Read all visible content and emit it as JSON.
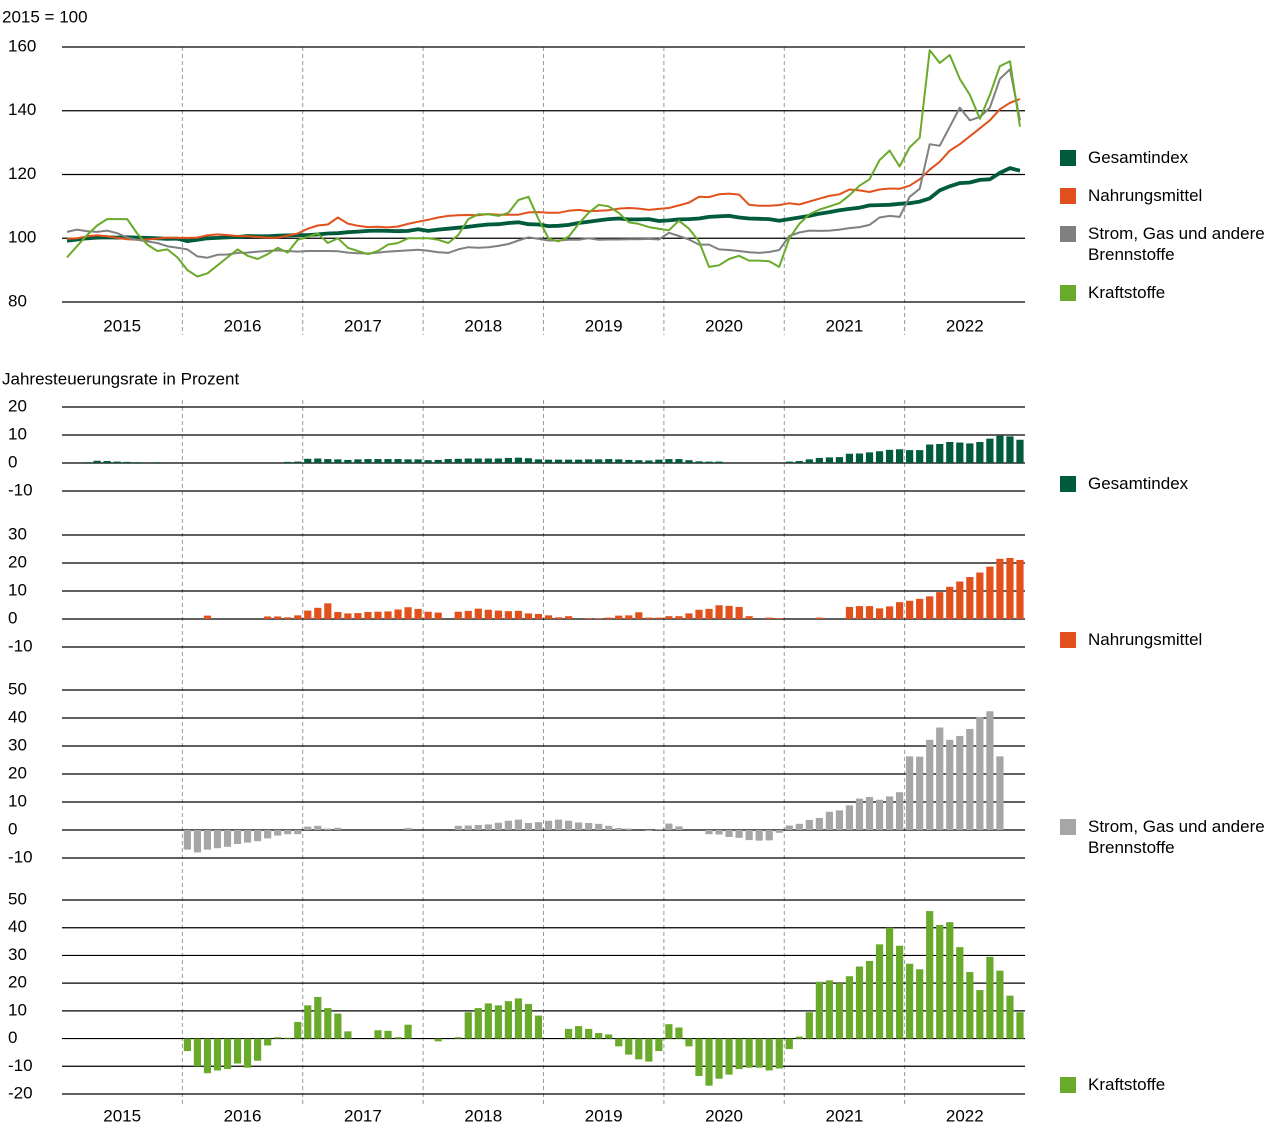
{
  "chart_data": [
    {
      "type": "line",
      "title": "2015 = 100",
      "categories": [
        null,
        null,
        null,
        null,
        null,
        null,
        "2015",
        null,
        null,
        null,
        null,
        null,
        null,
        null,
        null,
        null,
        null,
        null,
        "2016",
        null,
        null,
        null,
        null,
        null,
        null,
        null,
        null,
        null,
        null,
        null,
        "2017",
        null,
        null,
        null,
        null,
        null,
        null,
        null,
        null,
        null,
        null,
        null,
        "2018",
        null,
        null,
        null,
        null,
        null,
        null,
        null,
        null,
        null,
        null,
        null,
        "2019",
        null,
        null,
        null,
        null,
        null,
        null,
        null,
        null,
        null,
        null,
        null,
        "2020",
        null,
        null,
        null,
        null,
        null,
        null,
        null,
        null,
        null,
        null,
        null,
        "2021",
        null,
        null,
        null,
        null,
        null,
        null,
        null,
        null,
        null,
        null,
        null,
        "2022",
        null,
        null,
        null,
        null,
        null
      ],
      "ylim": [
        80,
        160
      ],
      "yticks": [
        80,
        100,
        120,
        140,
        160
      ],
      "series": [
        {
          "name": "Gesamtindex",
          "color": "#005a3c",
          "values": [
            99.2,
            99.6,
            100,
            100.2,
            100.3,
            100.2,
            100.3,
            100.2,
            100.1,
            100,
            99.8,
            99.9,
            99.1,
            99.5,
            100,
            100.1,
            100.3,
            100.4,
            100.7,
            100.6,
            100.6,
            100.8,
            100.9,
            101,
            101,
            101.2,
            101.5,
            101.6,
            101.9,
            102.1,
            102.3,
            102.4,
            102.3,
            102.2,
            102.3,
            102.8,
            102.3,
            102.7,
            103,
            103.3,
            103.6,
            104,
            104.3,
            104.4,
            104.8,
            105,
            104.4,
            104.3,
            103.8,
            103.9,
            104.2,
            104.8,
            105.2,
            105.6,
            106,
            106.2,
            105.9,
            105.9,
            106,
            105.4,
            105.6,
            105.9,
            106,
            106.2,
            106.7,
            106.9,
            107,
            106.5,
            106.2,
            106.1,
            106,
            105.5,
            106,
            106.5,
            107,
            107.7,
            108.2,
            108.8,
            109.2,
            109.6,
            110.3,
            110.4,
            110.5,
            110.8,
            111,
            111.5,
            112.5,
            115,
            116.3,
            117.3,
            117.5,
            118.3,
            118.5,
            120.5,
            122,
            121.2
          ]
        },
        {
          "name": "Nahrungsmittel",
          "color": "#e2501c",
          "values": [
            99.8,
            100,
            100.6,
            100.9,
            100.6,
            100.1,
            99.7,
            99.5,
            99.6,
            99.9,
            100.2,
            100.1,
            100.1,
            100.2,
            100.9,
            101.2,
            101,
            100.7,
            100.6,
            100.4,
            100.2,
            100.2,
            100.8,
            101.5,
            103,
            104,
            104.3,
            106.5,
            104.6,
            103.9,
            103.5,
            103.6,
            103.4,
            103.7,
            104.5,
            105.2,
            105.8,
            106.5,
            107,
            107.2,
            107.3,
            107.2,
            107.6,
            107.4,
            107.4,
            107.4,
            108.1,
            108.2,
            108,
            108,
            108.6,
            108.9,
            108.5,
            108.6,
            108.8,
            109.3,
            109.5,
            109.3,
            108.9,
            109.2,
            109.5,
            110.3,
            111.2,
            113,
            112.9,
            113.8,
            114,
            113.7,
            110.5,
            110.2,
            110.2,
            110.4,
            111,
            110.6,
            111.5,
            112.4,
            113.3,
            113.8,
            115.3,
            115,
            114.5,
            115.3,
            115.6,
            115.5,
            116.5,
            118.5,
            121.5,
            124,
            127.5,
            129.5,
            132,
            134.5,
            137,
            140.5,
            142.5,
            143.7
          ]
        },
        {
          "name": "Strom, Gas und andere Brennstoffe",
          "color": "#808080",
          "values": [
            102,
            102.7,
            102.2,
            102,
            102.4,
            101.6,
            100.2,
            99.5,
            99,
            98.5,
            97.5,
            97,
            96.5,
            94.3,
            93.9,
            94.8,
            94.9,
            95.4,
            95.5,
            95.8,
            96,
            96.2,
            96,
            95.8,
            96,
            96,
            96,
            95.9,
            95.5,
            95.3,
            95.2,
            95.5,
            95.8,
            96,
            96.2,
            96.4,
            96.1,
            95.6,
            95.4,
            96.5,
            97.2,
            97,
            97.2,
            97.6,
            98.2,
            99.3,
            100.3,
            99.8,
            99.3,
            99.3,
            99.5,
            99.5,
            100,
            99.5,
            99.6,
            99.6,
            99.7,
            99.7,
            99.8,
            99.6,
            101.7,
            100.7,
            99.6,
            98,
            98,
            96.5,
            96.3,
            96,
            95.6,
            95.4,
            95.7,
            96.3,
            100.7,
            101.8,
            102.4,
            102.3,
            102.4,
            102.7,
            103.2,
            103.5,
            104.2,
            106.5,
            107,
            106.7,
            113,
            115.5,
            129.5,
            129,
            135,
            141,
            137,
            138,
            141,
            150,
            153,
            137
          ]
        },
        {
          "name": "Kraftstoffe",
          "color": "#6aaa2a",
          "values": [
            94,
            97.5,
            101,
            104,
            106,
            106,
            106,
            101.5,
            98,
            96,
            96.5,
            94,
            90,
            88,
            89,
            91.5,
            94,
            96.5,
            94.5,
            93.5,
            95,
            97,
            95.5,
            99.5,
            100.5,
            101.5,
            98.5,
            100,
            97,
            96,
            95,
            96,
            98,
            98.5,
            100,
            100,
            100,
            99.5,
            98.5,
            101,
            106,
            107.5,
            107.5,
            107,
            108,
            112,
            113,
            106,
            100,
            99,
            100.5,
            104.5,
            108,
            110.5,
            110,
            108,
            105,
            104.5,
            103.5,
            103,
            102.5,
            105.5,
            103,
            99,
            91,
            91.5,
            93.5,
            94.5,
            93,
            93,
            92.8,
            91,
            100,
            104.5,
            107.5,
            109,
            110,
            111,
            113.5,
            116.5,
            118.5,
            124.5,
            127.5,
            122.5,
            128.5,
            131.5,
            159,
            155,
            157.5,
            150,
            145,
            137.5,
            145,
            154,
            155.5,
            135
          ]
        }
      ]
    },
    {
      "type": "bar",
      "title": "Jahresteuerungsrate in Prozent",
      "ylim": [
        -10,
        20
      ],
      "yticks": [
        -10,
        0,
        10,
        20
      ],
      "series": [
        {
          "name": "Gesamtindex",
          "color": "#005a3c",
          "values": [
            0,
            0,
            0.3,
            0.8,
            0.7,
            0.5,
            0.4,
            0.3,
            0,
            0.3,
            0,
            0,
            0,
            0,
            0,
            0,
            0,
            0,
            0,
            0,
            0,
            0,
            0.4,
            0.5,
            1.5,
            1.6,
            1.4,
            1.3,
            1.1,
            1.3,
            1.4,
            1.4,
            1.4,
            1.4,
            1.3,
            1.3,
            1,
            1.1,
            1.4,
            1.5,
            1.6,
            1.6,
            1.6,
            1.6,
            1.8,
            1.9,
            1.7,
            1.3,
            1.2,
            1.2,
            1.2,
            1.2,
            1.3,
            1.3,
            1.4,
            1.3,
            1.1,
            1,
            0.9,
            1.2,
            1.4,
            1.4,
            1,
            0.6,
            0.5,
            0.5,
            0,
            0,
            0,
            0,
            0,
            0,
            0.5,
            0.7,
            1.3,
            1.8,
            2,
            2.1,
            3.3,
            3.4,
            3.8,
            4.2,
            4.7,
            4.9,
            4.6,
            4.6,
            6.6,
            6.8,
            7.5,
            7.3,
            7,
            7.5,
            8.7,
            9.7,
            9.5,
            8.3
          ]
        }
      ]
    },
    {
      "type": "bar",
      "ylim": [
        -10,
        30
      ],
      "yticks": [
        -10,
        0,
        10,
        20,
        30
      ],
      "series": [
        {
          "name": "Nahrungsmittel",
          "color": "#e2501c",
          "values": [
            null,
            null,
            null,
            null,
            null,
            null,
            null,
            null,
            null,
            null,
            null,
            null,
            0,
            0,
            1.2,
            0,
            0,
            0,
            0,
            0,
            0.9,
            0.9,
            0.6,
            1.3,
            3,
            4,
            5.6,
            2.5,
            2,
            2.1,
            2.5,
            2.6,
            2.7,
            3.4,
            4.2,
            3.6,
            2.6,
            2.3,
            0,
            2.6,
            2.9,
            3.7,
            3.3,
            3,
            2.8,
            2.9,
            2,
            1.8,
            1.3,
            0.6,
            1,
            0,
            0.3,
            0.2,
            0.5,
            1.2,
            1.3,
            2.4,
            0.5,
            0.5,
            1,
            1,
            2,
            3.3,
            3.6,
            4.9,
            4.7,
            4.3,
            1,
            0,
            0.5,
            0.3,
            0,
            0,
            0,
            0.5,
            0,
            0,
            4.3,
            4.6,
            4.6,
            3.8,
            4.5,
            6,
            6.5,
            7.2,
            8.1,
            9.6,
            11.5,
            13.4,
            15,
            16.6,
            18.7,
            21.5,
            21.8,
            21.1
          ]
        }
      ]
    },
    {
      "type": "bar",
      "ylim": [
        -10,
        50
      ],
      "yticks": [
        -10,
        0,
        10,
        20,
        30,
        40,
        50
      ],
      "series": [
        {
          "name": "Strom, Gas und andere Brennstoffe",
          "color": "#a6a6a6",
          "values": [
            null,
            null,
            null,
            null,
            null,
            null,
            null,
            null,
            null,
            null,
            null,
            null,
            -7,
            -8,
            -7,
            -6.5,
            -6,
            -5,
            -4.5,
            -4,
            -3,
            -2,
            -1.5,
            -1.5,
            1.2,
            1.5,
            0.5,
            0.8,
            0,
            0,
            0,
            0,
            0,
            0,
            0.7,
            0,
            0,
            0,
            0,
            1.5,
            1.6,
            1.8,
            2,
            2.6,
            3.3,
            3.7,
            2.5,
            2.8,
            3.3,
            3.7,
            3.3,
            2.7,
            2.5,
            2.2,
            1.5,
            0.7,
            0.5,
            0,
            -0.3,
            0.2,
            2.3,
            1.3,
            0,
            0,
            -1.5,
            -1.6,
            -2.5,
            -2.8,
            -3.6,
            -3.8,
            -3.7,
            -1,
            1.6,
            2.2,
            3.6,
            4.3,
            6.5,
            7,
            8.8,
            11.2,
            11.8,
            10.8,
            12,
            13.5,
            26.3,
            26.2,
            32.2,
            36.6,
            32.2,
            33.6,
            36.1,
            40.4,
            42.4,
            26.3,
            null,
            null
          ]
        }
      ]
    },
    {
      "type": "bar",
      "ylim": [
        -20,
        50
      ],
      "yticks": [
        -20,
        -10,
        0,
        10,
        20,
        30,
        40,
        50
      ],
      "categories": [
        null,
        null,
        null,
        null,
        null,
        null,
        "2015",
        null,
        null,
        null,
        null,
        null,
        null,
        null,
        null,
        null,
        null,
        null,
        "2016",
        null,
        null,
        null,
        null,
        null,
        null,
        null,
        null,
        null,
        null,
        null,
        "2017",
        null,
        null,
        null,
        null,
        null,
        null,
        null,
        null,
        null,
        null,
        null,
        "2018",
        null,
        null,
        null,
        null,
        null,
        null,
        null,
        null,
        null,
        null,
        null,
        "2019",
        null,
        null,
        null,
        null,
        null,
        null,
        null,
        null,
        null,
        null,
        null,
        "2020",
        null,
        null,
        null,
        null,
        null,
        null,
        null,
        null,
        null,
        null,
        null,
        "2021",
        null,
        null,
        null,
        null,
        null,
        null,
        null,
        null,
        null,
        null,
        null,
        "2022",
        null,
        null,
        null,
        null,
        null
      ],
      "series": [
        {
          "name": "Kraftstoffe",
          "color": "#6aaa2a",
          "values": [
            null,
            null,
            null,
            null,
            null,
            null,
            null,
            null,
            null,
            null,
            null,
            null,
            -4.5,
            -10,
            -12.5,
            -11.5,
            -11,
            -9,
            -10.5,
            -8,
            -2.5,
            0.5,
            0.3,
            6,
            12,
            15,
            11,
            9,
            2.6,
            0,
            0,
            3,
            2.8,
            0.5,
            5,
            0,
            0,
            -1,
            0,
            0.5,
            9.5,
            11,
            12.7,
            12,
            13.5,
            14.5,
            12.5,
            8.3,
            0,
            0,
            3.5,
            4.5,
            3.5,
            2,
            1.5,
            -2.8,
            -5.8,
            -7.5,
            -8.3,
            -4.5,
            5.2,
            4,
            -2.8,
            -13.5,
            -17,
            -14.5,
            -13,
            -11,
            -10.5,
            -10.5,
            -11.5,
            -10.8,
            -3.8,
            0.7,
            9.5,
            20.5,
            21,
            20,
            22.5,
            26,
            28,
            34,
            40,
            33.5,
            27,
            25,
            46,
            41,
            42,
            33,
            24,
            17.5,
            29.5,
            24.5,
            15.5,
            9.5
          ]
        }
      ]
    }
  ]
}
